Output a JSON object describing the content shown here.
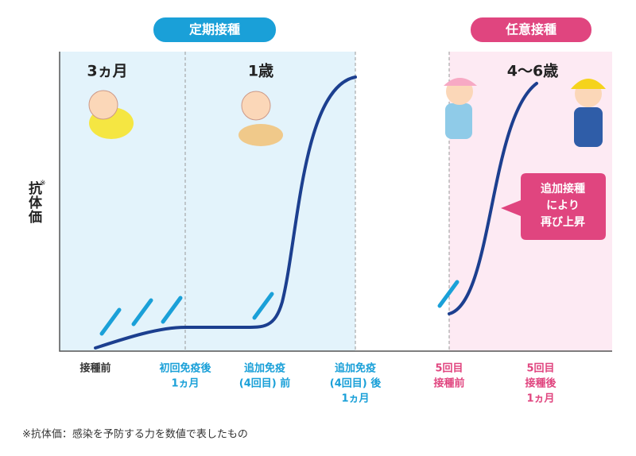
{
  "badges": {
    "routine": "定期接種",
    "optional": "任意接種"
  },
  "ages": [
    "3ヵ月",
    "1歳",
    "4〜6歳"
  ],
  "y_axis": {
    "label": "抗体価",
    "mark": "※"
  },
  "callout": [
    "追加接種",
    "により",
    "再び上昇"
  ],
  "x_labels": [
    [
      "接種前"
    ],
    [
      "初回免疫後",
      "1ヵ月"
    ],
    [
      "追加免疫",
      "(4回目) 前"
    ],
    [
      "追加免疫",
      "(4回目) 後",
      "1ヵ月"
    ],
    [
      "5回目",
      "接種前"
    ],
    [
      "5回目",
      "接種後",
      "1ヵ月"
    ]
  ],
  "footnote": "※抗体価：感染を予防する力を数値で表したもの"
}
